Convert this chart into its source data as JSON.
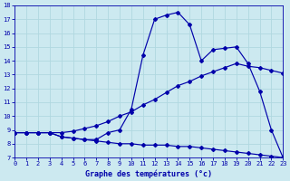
{
  "title": "Graphe des températures (°c)",
  "bg_color": "#cce9f0",
  "line_color": "#0000aa",
  "grid_color": "#b0d8e0",
  "ylim": [
    7,
    18
  ],
  "xlim": [
    0,
    23
  ],
  "yticks": [
    7,
    8,
    9,
    10,
    11,
    12,
    13,
    14,
    15,
    16,
    17,
    18
  ],
  "xticks": [
    0,
    1,
    2,
    3,
    4,
    5,
    6,
    7,
    8,
    9,
    10,
    11,
    12,
    13,
    14,
    15,
    16,
    17,
    18,
    19,
    20,
    21,
    22,
    23
  ],
  "series": [
    {
      "x": [
        0,
        1,
        2,
        3,
        4,
        5,
        6,
        7,
        8,
        9,
        10,
        11,
        12,
        13,
        14,
        15,
        16,
        17,
        18,
        19,
        20,
        21,
        22,
        23
      ],
      "y": [
        8.8,
        8.8,
        8.8,
        8.8,
        8.5,
        8.4,
        8.3,
        8.2,
        8.1,
        8.0,
        8.0,
        7.9,
        7.9,
        7.9,
        7.8,
        7.8,
        7.7,
        7.6,
        7.5,
        7.4,
        7.3,
        7.2,
        7.1,
        7.0
      ]
    },
    {
      "x": [
        0,
        1,
        2,
        3,
        4,
        5,
        6,
        7,
        8,
        9,
        10,
        11,
        12,
        13,
        14,
        15,
        16,
        17,
        18,
        19,
        20,
        21,
        22,
        23
      ],
      "y": [
        8.8,
        8.8,
        8.8,
        8.8,
        8.8,
        8.9,
        9.1,
        9.3,
        9.6,
        10.0,
        10.3,
        10.8,
        11.2,
        11.7,
        12.2,
        12.5,
        12.9,
        13.2,
        13.5,
        13.8,
        13.6,
        13.5,
        13.3,
        13.1
      ]
    },
    {
      "x": [
        0,
        1,
        2,
        3,
        4,
        5,
        6,
        7,
        8,
        9,
        10,
        11,
        12,
        13,
        14,
        15,
        16,
        17,
        18,
        19,
        20,
        21,
        22,
        23
      ],
      "y": [
        8.8,
        8.8,
        8.8,
        8.8,
        8.5,
        8.4,
        8.3,
        8.3,
        8.8,
        9.0,
        10.5,
        14.4,
        17.0,
        17.3,
        17.5,
        16.6,
        14.0,
        14.8,
        14.9,
        15.0,
        13.8,
        11.8,
        9.0,
        7.0
      ]
    }
  ]
}
